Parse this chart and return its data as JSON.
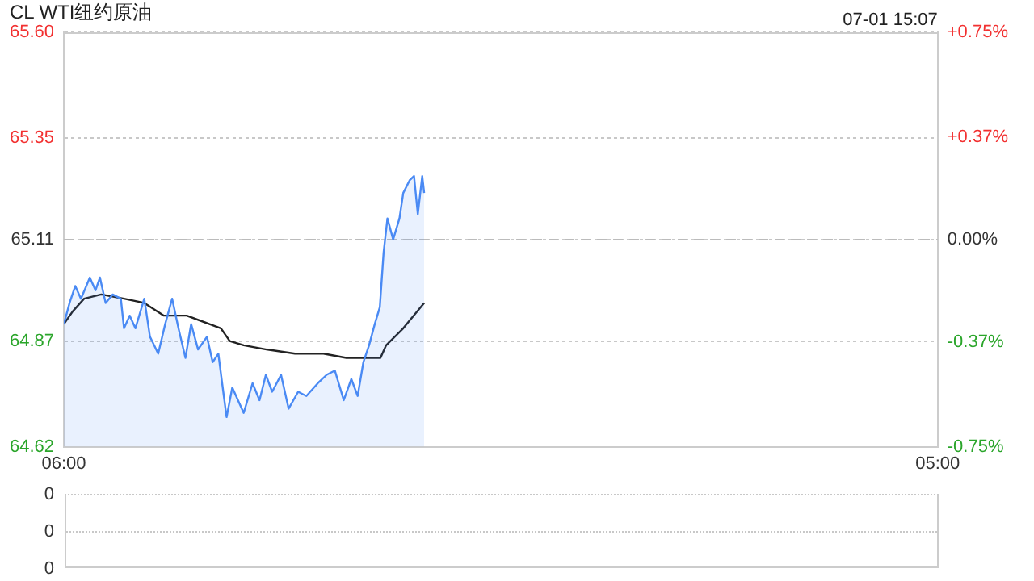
{
  "chart_data": [
    {
      "type": "line",
      "title": "CL WTI纽约原油",
      "annotations": [
        "07-01 15:07"
      ],
      "xlim": [
        "--07-01T06:00",
        "--07-02T05:00"
      ],
      "xticks": [
        {
          "value": "--07-01T06:00",
          "label": "06:00"
        },
        {
          "value": "--07-02T05:00",
          "label": "05:00"
        }
      ],
      "ylim": [
        64.62,
        65.6
      ],
      "yticks": [
        64.62,
        64.87,
        65.11,
        65.35,
        {
          "value": 65.6,
          "label": "65.60"
        }
      ],
      "y2lim": [
        -0.75,
        0.75
      ],
      "y2ticks": [
        {
          "value": -0.75,
          "label": "-0.75%"
        },
        {
          "value": -0.37,
          "label": "-0.37%"
        },
        {
          "value": 0,
          "label": "0.00%"
        },
        {
          "value": 0.37,
          "label": "+0.37%"
        },
        {
          "value": 0.75,
          "label": "+0.75%"
        }
      ],
      "grid": "y",
      "legend": false,
      "marker": "none",
      "ref_lines": [
        {
          "axis": "y",
          "value": 65.11,
          "line_style": "dashed",
          "color": "#bbbbbb"
        }
      ],
      "series": [
        {
          "type": "area",
          "color": "#4a8af4",
          "x": [
            "--07-01T06:00",
            "--07-01T06:09",
            "--07-01T06:18",
            "--07-01T06:27",
            "--07-01T06:41",
            "--07-01T06:50",
            "--07-01T06:57",
            "--07-01T07:06",
            "--07-01T07:17",
            "--07-01T07:30",
            "--07-01T07:35",
            "--07-01T07:44",
            "--07-01T07:53",
            "--07-01T08:07",
            "--07-01T08:16",
            "--07-01T08:29",
            "--07-01T08:40",
            "--07-01T08:51",
            "--07-01T09:01",
            "--07-01T09:12",
            "--07-01T09:21",
            "--07-01T09:32",
            "--07-01T09:46",
            "--07-01T09:55",
            "--07-01T10:04",
            "--07-01T10:10",
            "--07-01T10:17",
            "--07-01T10:26",
            "--07-01T10:35",
            "--07-01T10:44",
            "--07-01T10:58",
            "--07-01T11:09",
            "--07-01T11:19",
            "--07-01T11:29",
            "--07-01T11:43",
            "--07-01T11:55",
            "--07-01T12:10",
            "--07-01T12:23",
            "--07-01T12:41",
            "--07-01T12:55",
            "--07-01T13:08",
            "--07-01T13:22",
            "--07-01T13:34",
            "--07-01T13:44",
            "--07-01T13:53",
            "--07-01T14:02",
            "--07-01T14:11",
            "--07-01T14:19",
            "--07-01T14:25",
            "--07-01T14:31",
            "--07-01T14:40",
            "--07-01T14:50",
            "--07-01T14:56",
            "--07-01T15:06",
            "--07-01T15:13",
            "--07-01T15:19",
            "--07-01T15:26",
            "--07-01T15:29"
          ],
          "values": [
            64.91,
            64.96,
            65.0,
            64.97,
            65.02,
            64.99,
            65.02,
            64.96,
            64.98,
            64.97,
            64.9,
            64.93,
            64.9,
            64.97,
            64.88,
            64.84,
            64.91,
            64.97,
            64.9,
            64.83,
            64.91,
            64.85,
            64.88,
            64.82,
            64.84,
            64.77,
            64.69,
            64.76,
            64.73,
            64.7,
            64.77,
            64.73,
            64.79,
            64.75,
            64.79,
            64.71,
            64.75,
            64.74,
            64.77,
            64.79,
            64.8,
            64.73,
            64.78,
            64.74,
            64.82,
            64.86,
            64.91,
            64.95,
            65.08,
            65.16,
            65.11,
            65.16,
            65.22,
            65.25,
            65.26,
            65.17,
            65.26,
            65.22
          ]
        },
        {
          "type": "line",
          "color": "#222222",
          "x": [
            "--07-01T06:00",
            "--07-01T06:14",
            "--07-01T06:32",
            "--07-01T06:59",
            "--07-01T07:35",
            "--07-01T08:07",
            "--07-01T08:38",
            "--07-01T09:14",
            "--07-01T09:50",
            "--07-01T10:08",
            "--07-01T10:22",
            "--07-01T10:44",
            "--07-01T11:20",
            "--07-01T12:05",
            "--07-01T12:50",
            "--07-01T13:26",
            "--07-01T13:58",
            "--07-01T14:20",
            "--07-01T14:29",
            "--07-01T14:56",
            "--07-01T15:29"
          ],
          "values": [
            64.91,
            64.94,
            64.97,
            64.98,
            64.97,
            64.96,
            64.93,
            64.93,
            64.91,
            64.9,
            64.87,
            64.86,
            64.85,
            64.84,
            64.84,
            64.83,
            64.83,
            64.83,
            64.86,
            64.9,
            64.96
          ]
        }
      ]
    },
    {
      "type": "other",
      "annotations": [
        "0",
        "0",
        "0"
      ]
    }
  ]
}
